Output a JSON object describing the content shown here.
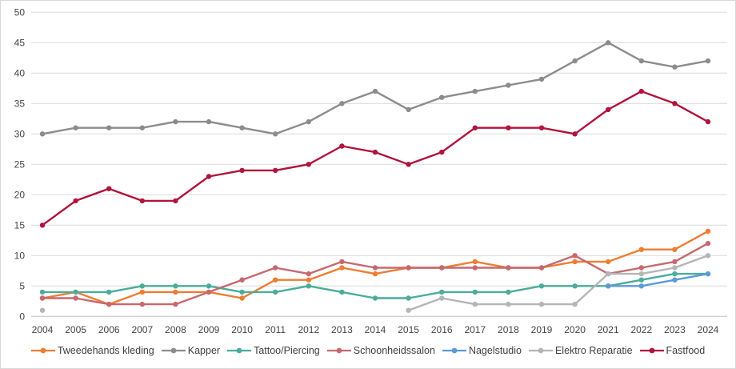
{
  "chart_data": {
    "type": "line",
    "title": "",
    "xlabel": "",
    "ylabel": "",
    "ylim": [
      0,
      50
    ],
    "ytick_step": 5,
    "grid": true,
    "legend_position": "bottom",
    "categories": [
      "2004",
      "2005",
      "2006",
      "2007",
      "2008",
      "2009",
      "2010",
      "2011",
      "2012",
      "2013",
      "2014",
      "2015",
      "2016",
      "2017",
      "2018",
      "2019",
      "2020",
      "2021",
      "2022",
      "2023",
      "2024"
    ],
    "series": [
      {
        "name": "Tweedehands kleding",
        "color": "#ED7D31",
        "values": [
          3,
          4,
          2,
          4,
          4,
          4,
          3,
          6,
          6,
          8,
          7,
          8,
          8,
          9,
          8,
          8,
          9,
          9,
          11,
          11,
          14
        ]
      },
      {
        "name": "Kapper",
        "color": "#8C8C8C",
        "values": [
          30,
          31,
          31,
          31,
          32,
          32,
          31,
          30,
          32,
          35,
          37,
          34,
          36,
          37,
          38,
          39,
          42,
          45,
          42,
          41,
          42
        ]
      },
      {
        "name": "Tattoo/Piercing",
        "color": "#4BAC9B",
        "values": [
          4,
          4,
          4,
          5,
          5,
          5,
          4,
          4,
          5,
          4,
          3,
          3,
          4,
          4,
          4,
          5,
          5,
          5,
          6,
          7,
          7
        ]
      },
      {
        "name": "Schoonheidssalon",
        "color": "#C5696F",
        "values": [
          3,
          3,
          2,
          2,
          2,
          4,
          6,
          8,
          7,
          9,
          8,
          8,
          8,
          8,
          8,
          8,
          10,
          7,
          8,
          9,
          12
        ]
      },
      {
        "name": "Nagelstudio",
        "color": "#5B9BD5",
        "values": [
          null,
          null,
          null,
          null,
          null,
          null,
          null,
          null,
          null,
          null,
          null,
          null,
          null,
          null,
          null,
          null,
          null,
          5,
          5,
          6,
          7
        ]
      },
      {
        "name": "Elektro Reparatie",
        "color": "#B5B5B5",
        "values": [
          1,
          null,
          null,
          null,
          null,
          null,
          null,
          null,
          null,
          null,
          null,
          1,
          3,
          2,
          2,
          2,
          2,
          7,
          7,
          8,
          10
        ]
      },
      {
        "name": "Fastfood",
        "color": "#B0143C",
        "values": [
          15,
          19,
          21,
          19,
          19,
          23,
          24,
          24,
          25,
          28,
          27,
          25,
          27,
          31,
          31,
          31,
          30,
          34,
          37,
          35,
          32
        ]
      }
    ]
  }
}
